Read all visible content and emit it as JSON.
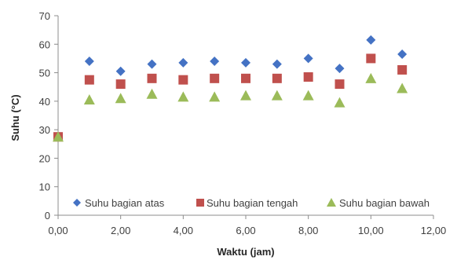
{
  "chart_data": {
    "type": "scatter",
    "xlabel": "Waktu (jam)",
    "ylabel": "Suhu (°C)",
    "xlim": [
      0,
      12
    ],
    "ylim": [
      0,
      70
    ],
    "x_ticks": [
      "0,00",
      "2,00",
      "4,00",
      "6,00",
      "8,00",
      "10,00",
      "12,00"
    ],
    "y_ticks": [
      "0",
      "10",
      "20",
      "30",
      "40",
      "50",
      "60",
      "70"
    ],
    "grid": false,
    "legend_position": "bottom-inside",
    "series": [
      {
        "name": "Suhu bagian atas",
        "marker": "diamond",
        "color": "#4472C4",
        "x": [
          0,
          1,
          2,
          3,
          4,
          5,
          6,
          7,
          8,
          9,
          10,
          11
        ],
        "y": [
          27.5,
          54,
          50.5,
          53,
          53.5,
          54,
          53.5,
          53,
          55,
          51.5,
          61.5,
          56.5
        ]
      },
      {
        "name": "Suhu bagian tengah",
        "marker": "square",
        "color": "#C0504D",
        "x": [
          0,
          1,
          2,
          3,
          4,
          5,
          6,
          7,
          8,
          9,
          10,
          11
        ],
        "y": [
          27.5,
          47.5,
          46,
          48,
          47.5,
          48,
          48,
          48,
          48.5,
          46,
          55,
          51
        ]
      },
      {
        "name": "Suhu bagian bawah",
        "marker": "triangle",
        "color": "#9BBB59",
        "x": [
          0,
          1,
          2,
          3,
          4,
          5,
          6,
          7,
          8,
          9,
          10,
          11
        ],
        "y": [
          27.5,
          40.5,
          41,
          42.5,
          41.5,
          41.5,
          42,
          42,
          42,
          39.5,
          48,
          44.5
        ]
      }
    ]
  }
}
